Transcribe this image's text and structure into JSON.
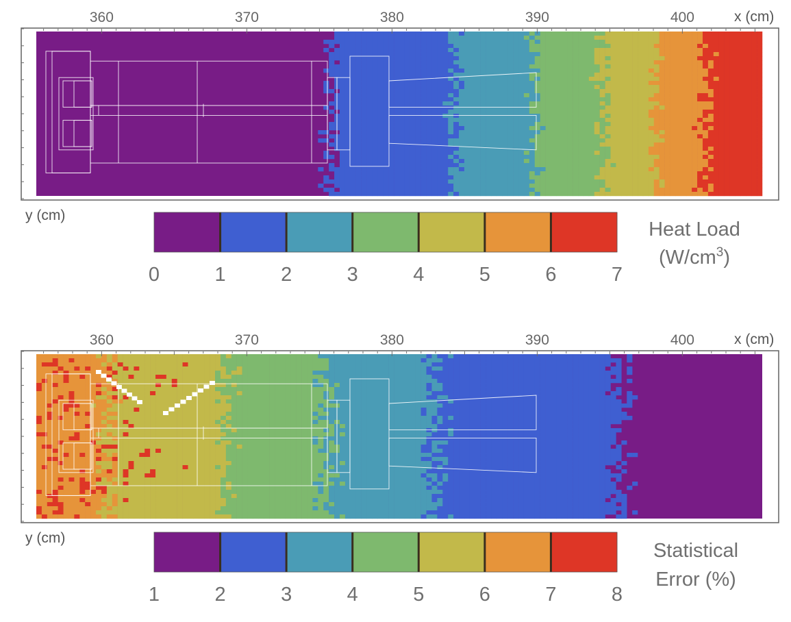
{
  "palette": [
    "#781c86",
    "#3f5fd1",
    "#4a9cb6",
    "#7eb96e",
    "#c2b94a",
    "#e6943a",
    "#de3626"
  ],
  "chart_data": [
    {
      "type": "heatmap",
      "id": "heat",
      "xlabel": "x (cm)",
      "ylabel": "y (cm)",
      "xlim": [
        355.5,
        405.5
      ],
      "x_ticks": [
        360,
        370,
        380,
        390,
        400
      ],
      "colorbar": {
        "title_lines": [
          "Heat Load",
          "(W/cm",
          "3",
          ")"
        ],
        "ticks": [
          0,
          1,
          2,
          3,
          4,
          5,
          6,
          7
        ]
      },
      "value_trend": "increases with x: about 0 below 375 cm rising to about 7 near 405 cm",
      "band_edges": [
        {
          "from_level": 0,
          "to_level": 1,
          "x": 375.7
        },
        {
          "from_level": 1,
          "to_level": 2,
          "x": 384.3
        },
        {
          "from_level": 2,
          "to_level": 3,
          "x": 389.7
        },
        {
          "from_level": 3,
          "to_level": 4,
          "x": 394.5
        },
        {
          "from_level": 4,
          "to_level": 5,
          "x": 398.2
        },
        {
          "from_level": 5,
          "to_level": 6,
          "x": 401.6
        }
      ]
    },
    {
      "type": "heatmap",
      "id": "err",
      "xlabel": "x (cm)",
      "ylabel": "y (cm)",
      "xlim": [
        355.5,
        405.5
      ],
      "x_ticks": [
        360,
        370,
        380,
        390,
        400
      ],
      "colorbar": {
        "title_lines": [
          "Statistical",
          "Error (%)"
        ],
        "ticks": [
          1,
          2,
          3,
          4,
          5,
          6,
          7,
          8
        ]
      },
      "value_trend": "decreases with x: about 6-8 % near 356 cm falling to about 1 % beyond 396 cm",
      "band_edges": [
        {
          "from_level": 5,
          "to_level": 4,
          "x": 360.5
        },
        {
          "from_level": 4,
          "to_level": 3,
          "x": 368.5
        },
        {
          "from_level": 3,
          "to_level": 2,
          "x": 375.5
        },
        {
          "from_level": 2,
          "to_level": 1,
          "x": 383.0
        },
        {
          "from_level": 1,
          "to_level": 0,
          "x": 395.8
        }
      ]
    }
  ]
}
